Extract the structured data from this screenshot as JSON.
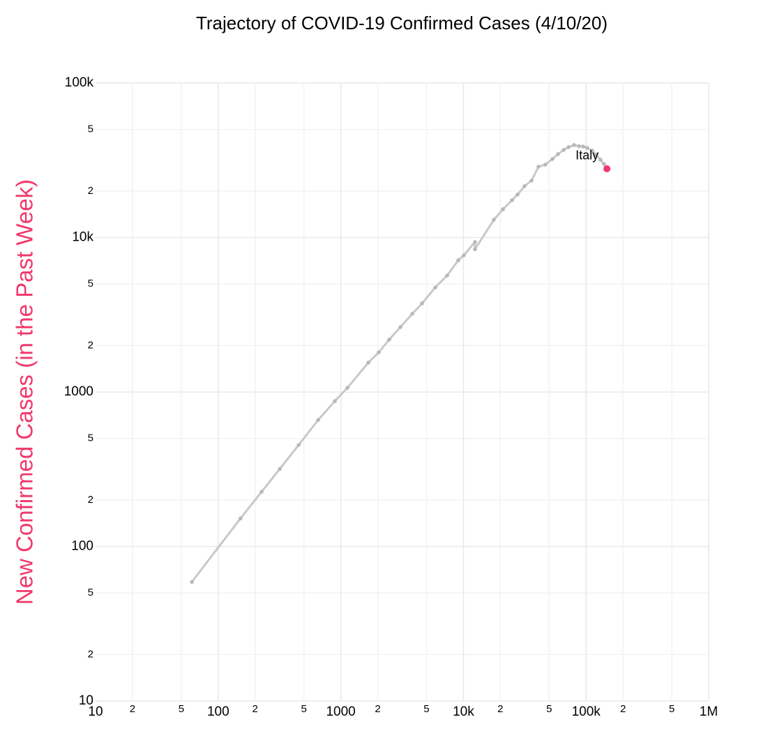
{
  "chart_data": {
    "type": "line",
    "title": "Trajectory of COVID-19 Confirmed Cases (4/10/20)",
    "ylabel": "New Confirmed Cases (in the Past Week)",
    "ylabel_color": "#f0386b",
    "xscale": "log",
    "yscale": "log",
    "grid": true,
    "xlim": [
      10,
      1000000
    ],
    "ylim": [
      10,
      100000
    ],
    "xticks": [
      10,
      {
        "value": 20,
        "label": "2"
      },
      {
        "value": 50,
        "label": "5"
      },
      100,
      {
        "value": 200,
        "label": "2"
      },
      {
        "value": 500,
        "label": "5"
      },
      1000,
      {
        "value": 2000,
        "label": "2"
      },
      {
        "value": 5000,
        "label": "5"
      },
      {
        "value": 10000,
        "label": "10k"
      },
      {
        "value": 20000,
        "label": "2"
      },
      {
        "value": 50000,
        "label": "5"
      },
      {
        "value": 100000,
        "label": "100k"
      },
      {
        "value": 200000,
        "label": "2"
      },
      {
        "value": 500000,
        "label": "5"
      },
      {
        "value": 1000000,
        "label": "1M"
      }
    ],
    "yticks": [
      10,
      {
        "value": 20,
        "label": "2"
      },
      {
        "value": 50,
        "label": "5"
      },
      100,
      {
        "value": 200,
        "label": "2"
      },
      {
        "value": 500,
        "label": "5"
      },
      1000,
      {
        "value": 2000,
        "label": "2"
      },
      {
        "value": 5000,
        "label": "5"
      },
      {
        "value": 10000,
        "label": "10k"
      },
      {
        "value": 20000,
        "label": "2"
      },
      {
        "value": 50000,
        "label": "5"
      },
      {
        "value": 100000,
        "label": "100k"
      }
    ],
    "highlight_color": "#f0386b",
    "series": [
      {
        "name": "Italy",
        "color": "#c8c8c8",
        "x": [
          61,
          152,
          226,
          318,
          453,
          653,
          894,
          1131,
          1676,
          2040,
          2480,
          3061,
          3826,
          4597,
          5894,
          7362,
          9080,
          10070,
          12420,
          12420,
          17700,
          21000,
          24900,
          27600,
          31500,
          35900,
          40900,
          46600,
          53200,
          59000,
          65600,
          71900,
          79800,
          87500,
          94600,
          102000,
          112000,
          121000,
          131000,
          140000,
          147900
        ],
        "values": [
          59,
          152,
          226,
          318,
          454,
          659,
          873,
          1064,
          1549,
          1808,
          2183,
          2631,
          3206,
          3745,
          4756,
          5678,
          7133,
          7669,
          9350,
          8400,
          13030,
          15240,
          17450,
          18970,
          21500,
          23360,
          28720,
          29640,
          32240,
          34650,
          36900,
          38460,
          39660,
          39000,
          38800,
          38000,
          36500,
          34300,
          31900,
          29900,
          27850
        ]
      }
    ]
  }
}
